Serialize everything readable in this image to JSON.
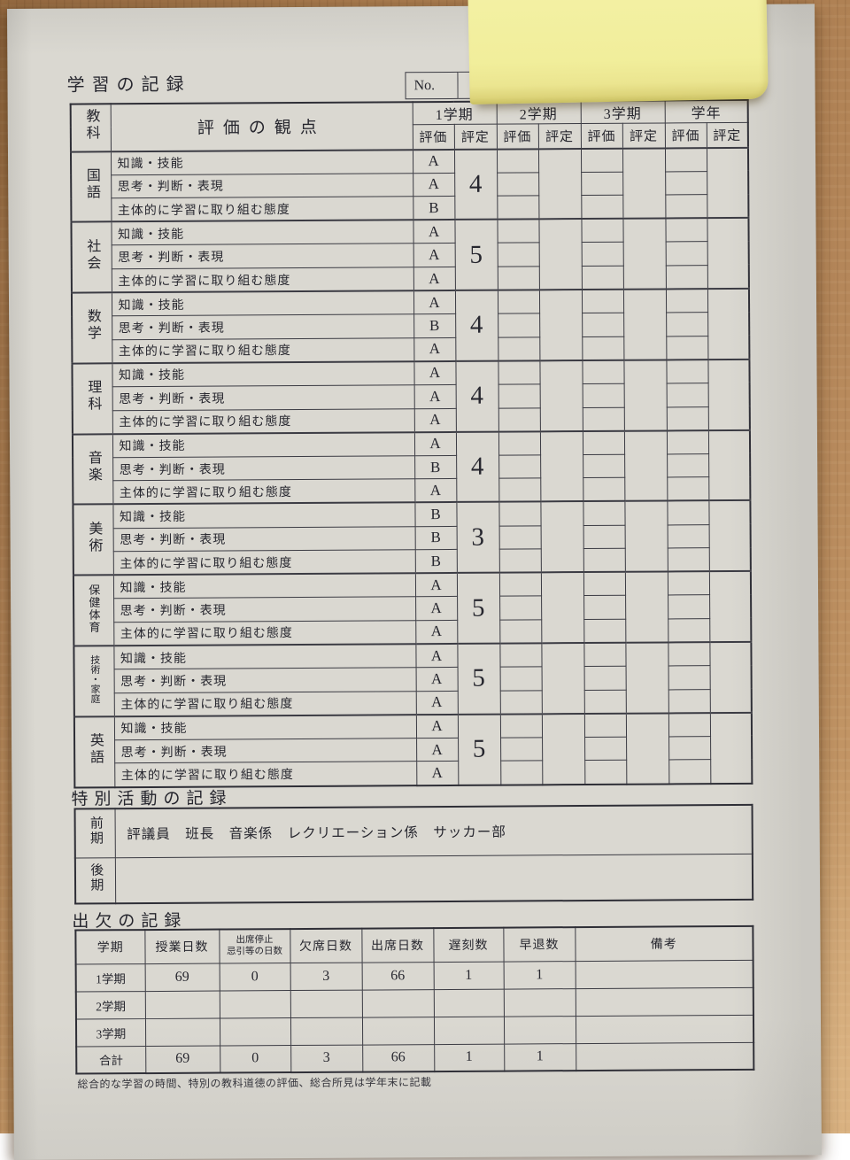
{
  "page": {
    "title": "学習の記録",
    "no_label": "No.",
    "footnote": "総合的な学習の時間、特別の教科道徳の評価、総合所見は学年末に記載"
  },
  "grades_table": {
    "subject_header": "教科",
    "criteria_header": "評価の観点",
    "eval_label": "評価",
    "rating_label": "評定",
    "terms": [
      "1学期",
      "2学期",
      "3学期",
      "学年"
    ],
    "criteria": [
      "知識・技能",
      "思考・判断・表現",
      "主体的に学習に取り組む態度"
    ],
    "subjects": [
      {
        "name": "国語",
        "marks": [
          "A",
          "A",
          "B"
        ],
        "rating": "4"
      },
      {
        "name": "社会",
        "marks": [
          "A",
          "A",
          "A"
        ],
        "rating": "5"
      },
      {
        "name": "数学",
        "marks": [
          "A",
          "B",
          "A"
        ],
        "rating": "4"
      },
      {
        "name": "理科",
        "marks": [
          "A",
          "A",
          "A"
        ],
        "rating": "4"
      },
      {
        "name": "音楽",
        "marks": [
          "A",
          "B",
          "A"
        ],
        "rating": "4"
      },
      {
        "name": "美術",
        "marks": [
          "B",
          "B",
          "B"
        ],
        "rating": "3"
      },
      {
        "name": "保健体育",
        "marks": [
          "A",
          "A",
          "A"
        ],
        "rating": "5",
        "size": "small"
      },
      {
        "name": "技術・家庭",
        "marks": [
          "A",
          "A",
          "A"
        ],
        "rating": "5",
        "size": "tiny"
      },
      {
        "name": "英語",
        "marks": [
          "A",
          "A",
          "A"
        ],
        "rating": "5"
      }
    ]
  },
  "special_activities": {
    "title": "特別活動の記録",
    "rows": [
      {
        "label": "前期",
        "content": "評議員　班長　音楽係　レクリエーション係　サッカー部"
      },
      {
        "label": "後期",
        "content": ""
      }
    ]
  },
  "attendance": {
    "title": "出欠の記録",
    "headers": [
      "学期",
      "授業日数",
      "出席停止\n忌引等の日数",
      "欠席日数",
      "出席日数",
      "遅刻数",
      "早退数",
      "備考"
    ],
    "rows": [
      {
        "label": "1学期",
        "values": [
          "69",
          "0",
          "3",
          "66",
          "1",
          "1",
          ""
        ]
      },
      {
        "label": "2学期",
        "values": [
          "",
          "",
          "",
          "",
          "",
          "",
          ""
        ]
      },
      {
        "label": "3学期",
        "values": [
          "",
          "",
          "",
          "",
          "",
          "",
          ""
        ]
      },
      {
        "label": "合計",
        "values": [
          "69",
          "0",
          "3",
          "66",
          "1",
          "1",
          ""
        ]
      }
    ]
  },
  "colors": {
    "paper": "#dad8d1",
    "table_line": "#3b3b43",
    "wood": "#b5875a",
    "sticky_note": "#f1ee9b"
  }
}
